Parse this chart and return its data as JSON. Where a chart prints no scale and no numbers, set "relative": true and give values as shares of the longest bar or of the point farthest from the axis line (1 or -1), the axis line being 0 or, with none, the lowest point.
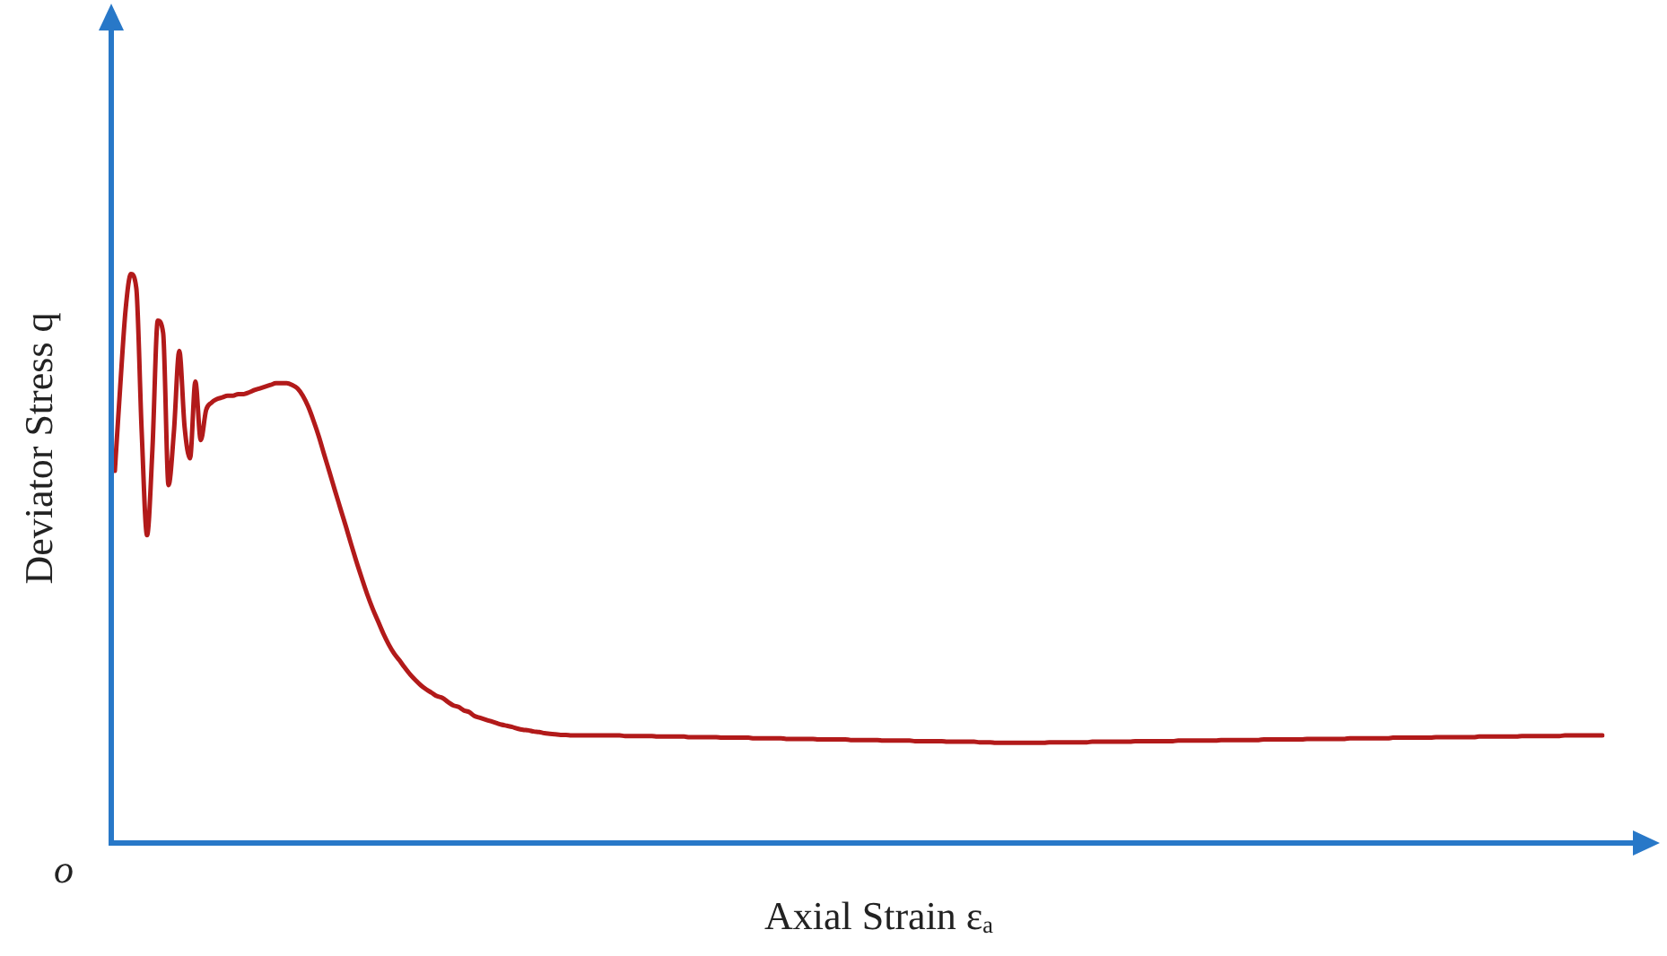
{
  "chart_data": {
    "type": "line",
    "relative": true,
    "xlabel": "Axial Strain εₐ",
    "ylabel": "Deviator Stress q",
    "annotations": [
      "o"
    ],
    "legend": false,
    "grid": false,
    "tick_labels": false,
    "marker": "none",
    "line_style": "solid",
    "categories": [
      null,
      null,
      null,
      null,
      null,
      null,
      null,
      null,
      null,
      null,
      null,
      null,
      null,
      null,
      null,
      null,
      null,
      null,
      null,
      null,
      null,
      null,
      null,
      null,
      null,
      null,
      null,
      null,
      null,
      null,
      null,
      null,
      null,
      null,
      null,
      null,
      null,
      null,
      null,
      null,
      null,
      null,
      null,
      null,
      null,
      null,
      null,
      null,
      null,
      null,
      null,
      null,
      null,
      null,
      null,
      null,
      null,
      null,
      null,
      null,
      null,
      null,
      null,
      null,
      null,
      null,
      null,
      null,
      null,
      null,
      null,
      null,
      null,
      null,
      null,
      null,
      null,
      null,
      null,
      null,
      null,
      null,
      null,
      null,
      null,
      null,
      null,
      null,
      null,
      null,
      null,
      null,
      null,
      null,
      null,
      null,
      null,
      null,
      null,
      null,
      null,
      null,
      null,
      null,
      null,
      null,
      null,
      null,
      null,
      null,
      null,
      null,
      null,
      null,
      null,
      null,
      null,
      null,
      null,
      null,
      null,
      null,
      null,
      null,
      null,
      null,
      null,
      null,
      null,
      null,
      null,
      null,
      null,
      null,
      null,
      null,
      null,
      null,
      null,
      null,
      null,
      null,
      null,
      null,
      null,
      null,
      null,
      null,
      null,
      null,
      null,
      null,
      null,
      null,
      null,
      null,
      null,
      null,
      null,
      null,
      null,
      null,
      null,
      null,
      null,
      null,
      null,
      null,
      null,
      null,
      null,
      null,
      null,
      null,
      null,
      null,
      null,
      null,
      null,
      null,
      null,
      null,
      null,
      null,
      null,
      null,
      null,
      null,
      null,
      null,
      null,
      null,
      null,
      null,
      null,
      null,
      null,
      null,
      null,
      null,
      null,
      null,
      null,
      null,
      null,
      null,
      null,
      null,
      null,
      null,
      null,
      null,
      null,
      null,
      null,
      null,
      null,
      null,
      null,
      null,
      null,
      null,
      null,
      null,
      null,
      null,
      null,
      null,
      null,
      null,
      null,
      null,
      null,
      null,
      null,
      null,
      null,
      null,
      null,
      null,
      null,
      null,
      null,
      null,
      null,
      null,
      null,
      null,
      null,
      null,
      null,
      null,
      null,
      null,
      null,
      null,
      null,
      null,
      null,
      null,
      null,
      null,
      null,
      null,
      null,
      null,
      null,
      null,
      null,
      null,
      null,
      null,
      null,
      null,
      null,
      null,
      null,
      null
    ],
    "series": [
      {
        "color": "#b21a1a",
        "values": [
          0.654,
          0.802,
          0.937,
          1,
          0.975,
          0.723,
          0.541,
          0.692,
          0.918,
          0.896,
          0.629,
          0.723,
          0.865,
          0.73,
          0.676,
          0.811,
          0.708,
          0.761,
          0.774,
          0.78,
          0.783,
          0.786,
          0.786,
          0.789,
          0.789,
          0.792,
          0.796,
          0.799,
          0.802,
          0.805,
          0.808,
          0.808,
          0.808,
          0.805,
          0.799,
          0.786,
          0.767,
          0.742,
          0.714,
          0.682,
          0.651,
          0.619,
          0.588,
          0.557,
          0.525,
          0.494,
          0.465,
          0.437,
          0.412,
          0.39,
          0.368,
          0.349,
          0.333,
          0.321,
          0.308,
          0.296,
          0.286,
          0.277,
          0.27,
          0.264,
          0.258,
          0.255,
          0.248,
          0.242,
          0.239,
          0.233,
          0.23,
          0.223,
          0.22,
          0.217,
          0.214,
          0.211,
          0.208,
          0.206,
          0.204,
          0.201,
          0.199,
          0.198,
          0.196,
          0.195,
          0.193,
          0.192,
          0.191,
          0.19,
          0.19,
          0.189,
          0.189,
          0.189,
          0.189,
          0.189,
          0.189,
          0.189,
          0.189,
          0.189,
          0.189,
          0.188,
          0.188,
          0.188,
          0.188,
          0.188,
          0.188,
          0.187,
          0.187,
          0.187,
          0.187,
          0.187,
          0.187,
          0.186,
          0.186,
          0.186,
          0.186,
          0.186,
          0.186,
          0.185,
          0.185,
          0.185,
          0.185,
          0.185,
          0.185,
          0.184,
          0.184,
          0.184,
          0.184,
          0.184,
          0.184,
          0.183,
          0.183,
          0.183,
          0.183,
          0.183,
          0.183,
          0.182,
          0.182,
          0.182,
          0.182,
          0.182,
          0.182,
          0.181,
          0.181,
          0.181,
          0.181,
          0.181,
          0.181,
          0.18,
          0.18,
          0.18,
          0.18,
          0.18,
          0.18,
          0.179,
          0.179,
          0.179,
          0.179,
          0.179,
          0.179,
          0.178,
          0.178,
          0.178,
          0.178,
          0.178,
          0.178,
          0.177,
          0.177,
          0.177,
          0.176,
          0.176,
          0.176,
          0.176,
          0.176,
          0.176,
          0.176,
          0.176,
          0.176,
          0.176,
          0.177,
          0.177,
          0.177,
          0.177,
          0.177,
          0.177,
          0.177,
          0.177,
          0.178,
          0.178,
          0.178,
          0.178,
          0.178,
          0.178,
          0.178,
          0.178,
          0.179,
          0.179,
          0.179,
          0.179,
          0.179,
          0.179,
          0.179,
          0.179,
          0.18,
          0.18,
          0.18,
          0.18,
          0.18,
          0.18,
          0.18,
          0.18,
          0.181,
          0.181,
          0.181,
          0.181,
          0.181,
          0.181,
          0.181,
          0.181,
          0.182,
          0.182,
          0.182,
          0.182,
          0.182,
          0.182,
          0.182,
          0.182,
          0.183,
          0.183,
          0.183,
          0.183,
          0.183,
          0.183,
          0.183,
          0.183,
          0.184,
          0.184,
          0.184,
          0.184,
          0.184,
          0.184,
          0.184,
          0.184,
          0.185,
          0.185,
          0.185,
          0.185,
          0.185,
          0.185,
          0.185,
          0.185,
          0.186,
          0.186,
          0.186,
          0.186,
          0.186,
          0.186,
          0.186,
          0.186,
          0.187,
          0.187,
          0.187,
          0.187,
          0.187,
          0.187,
          0.187,
          0.187,
          0.188,
          0.188,
          0.188,
          0.188,
          0.188,
          0.188,
          0.188,
          0.188,
          0.189,
          0.189,
          0.189,
          0.189,
          0.189,
          0.189,
          0.189,
          0.189
        ]
      }
    ]
  }
}
